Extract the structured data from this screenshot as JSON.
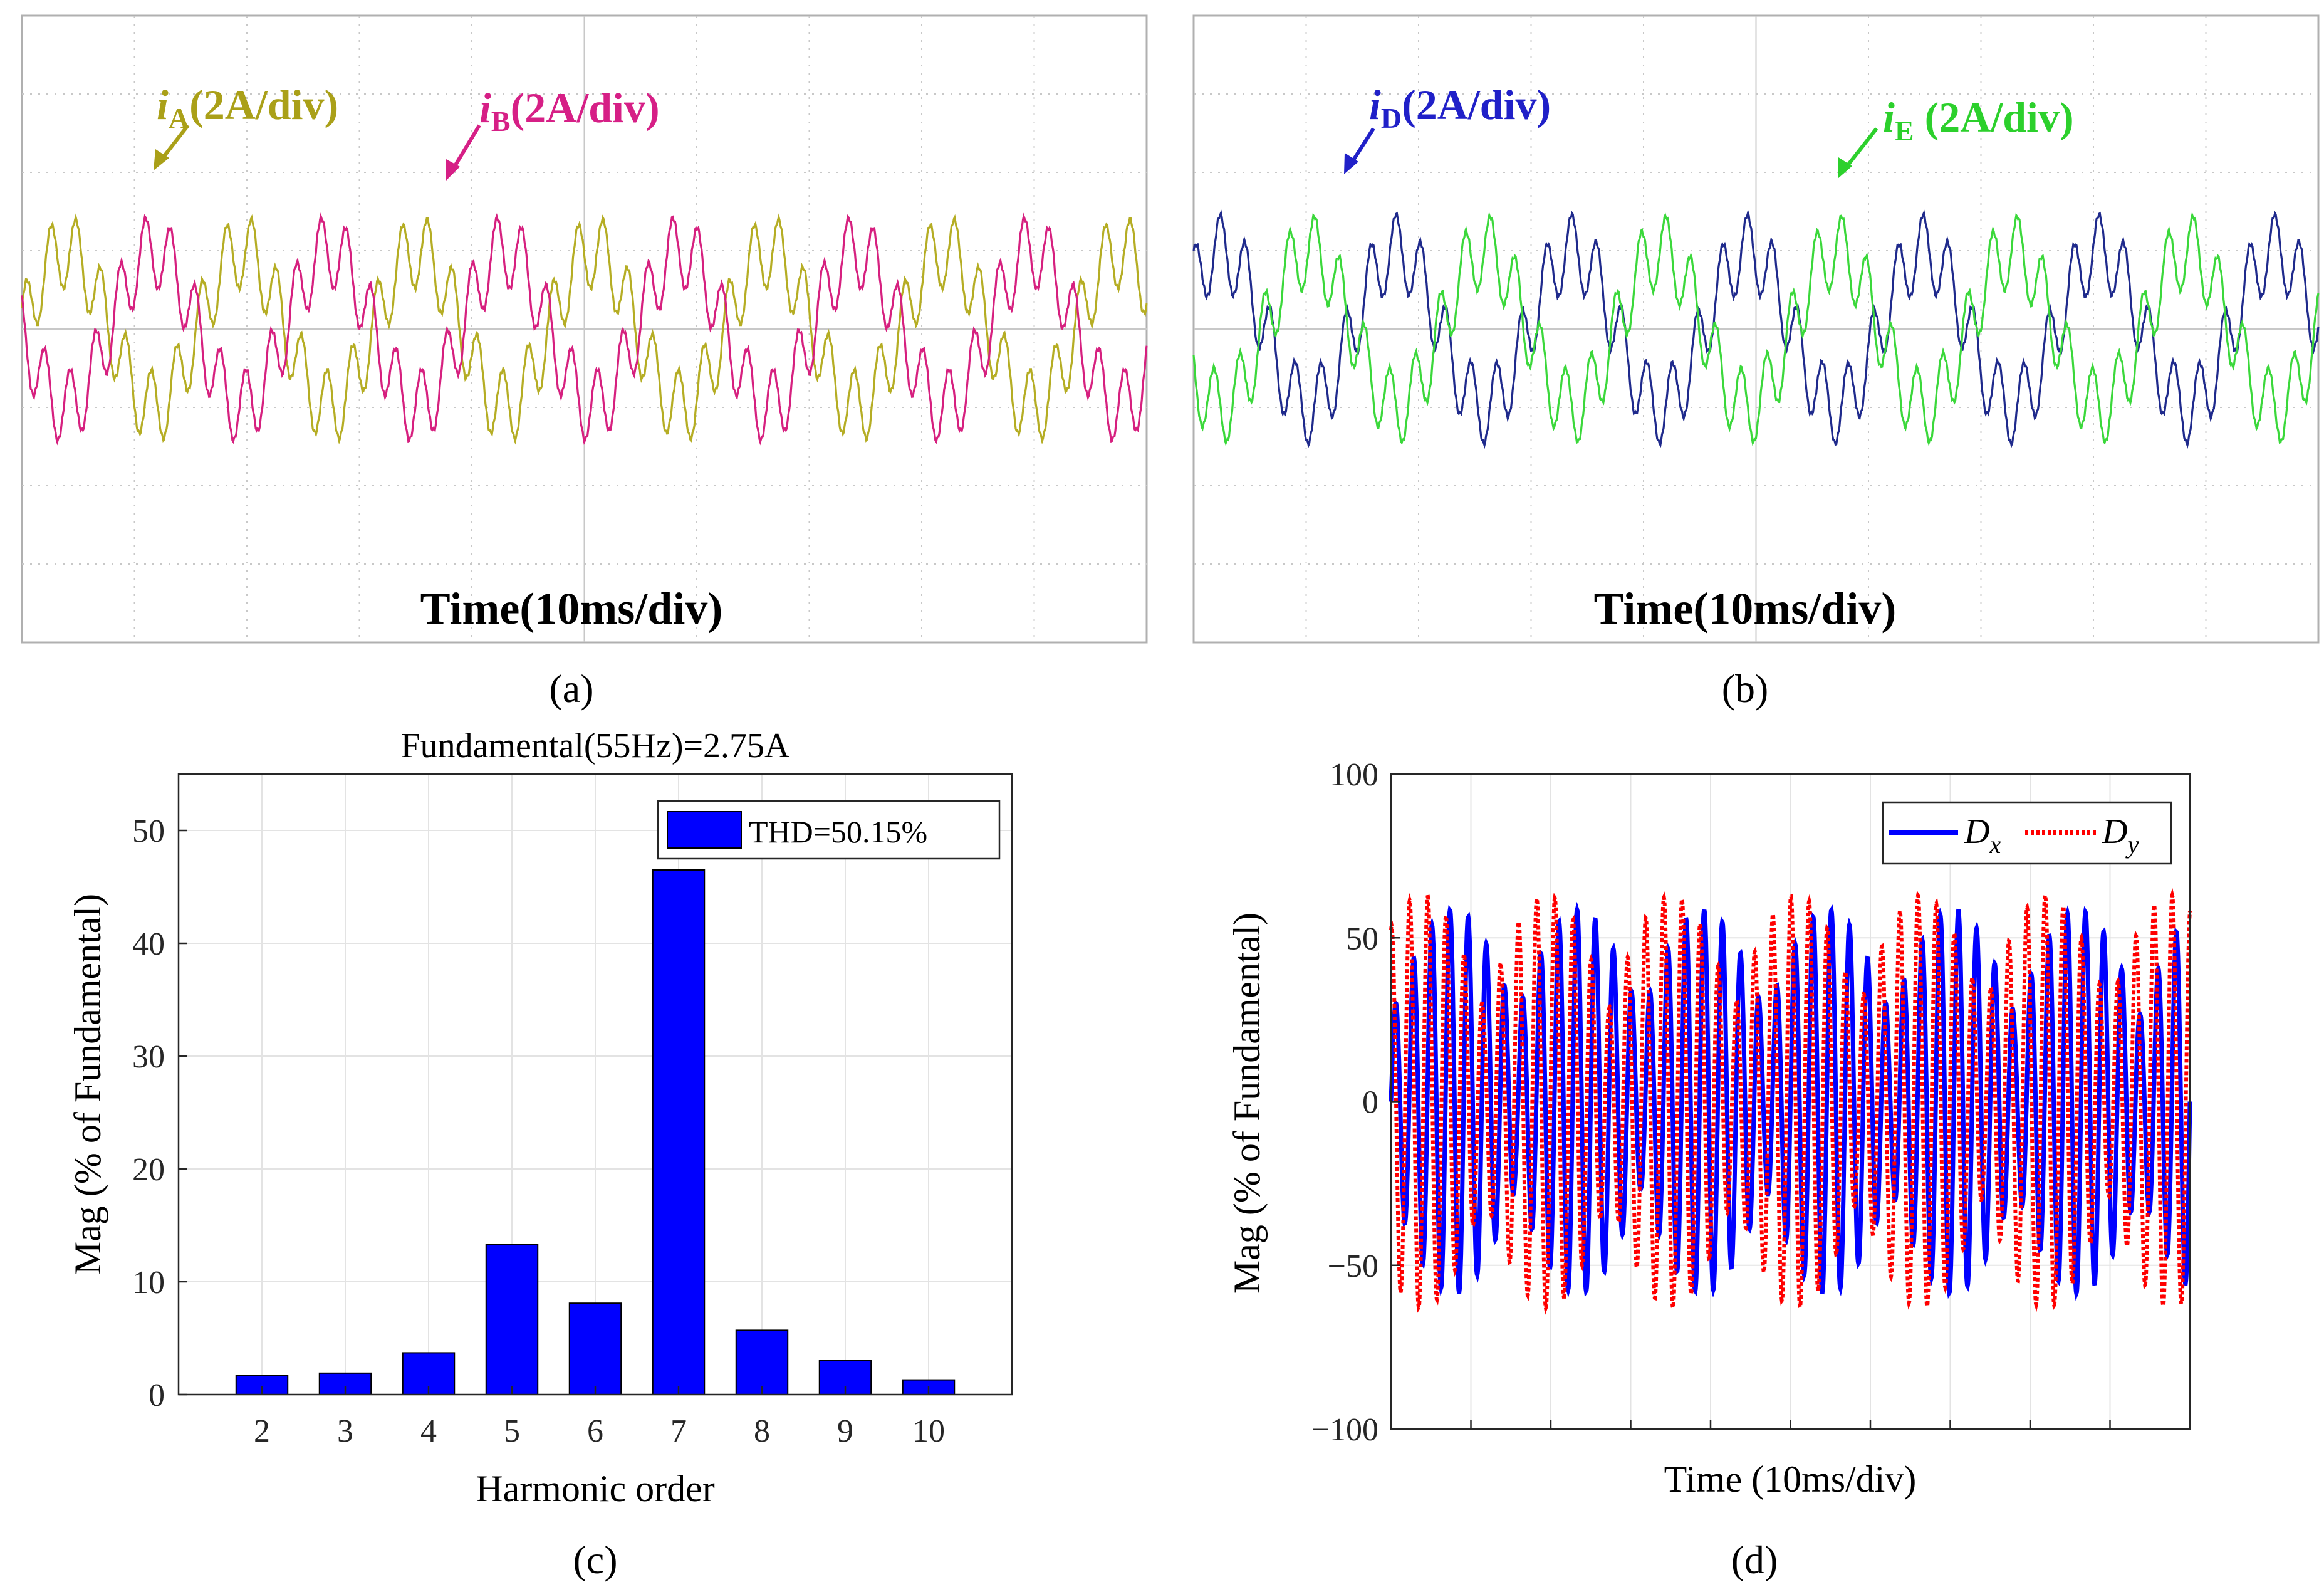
{
  "colors": {
    "scope_bg": "#ffffff",
    "scope_grid": "#c8c8c8",
    "iA": "#b5ad24",
    "iB": "#d6207f",
    "iD": "#1f2a8c",
    "iE": "#3bd83b",
    "label_iA": "#aaa018",
    "label_iB": "#d61f86",
    "label_iD": "#2020c8",
    "label_iE": "#2cd02c",
    "bar": "#0000ff",
    "dx": "#0000ff",
    "dy": "#ff0000"
  },
  "chart_data": [
    {
      "id": "a",
      "type": "line",
      "panel_label": "(a)",
      "xlabel": "Time(10ms/div)",
      "ylabel": "",
      "x_divisions": 10,
      "y_divisions": 8,
      "x_unit_per_div": "10ms",
      "series": [
        {
          "name": "iA",
          "label_main": "i",
          "label_sub": "A",
          "label_rest": "(2A/div)",
          "amp1": 1.0,
          "phase1": 0.0,
          "amp7": 0.47,
          "phase7": 0.6
        },
        {
          "name": "iB",
          "label_main": "i",
          "label_sub": "B",
          "label_rest": "(2A/div)",
          "amp1": 1.0,
          "phase1": 3.14,
          "amp7": 0.47,
          "phase7": 2.1
        }
      ]
    },
    {
      "id": "b",
      "type": "line",
      "panel_label": "(b)",
      "xlabel": "Time(10ms/div)",
      "ylabel": "",
      "x_divisions": 10,
      "y_divisions": 8,
      "x_unit_per_div": "10ms",
      "series": [
        {
          "name": "iD",
          "label_main": "i",
          "label_sub": "D",
          "label_rest": "(2A/div)",
          "amp1": 1.0,
          "phase1": 0.6,
          "amp7": 0.47,
          "phase7": 1.2
        },
        {
          "name": "iE",
          "label_main": "i",
          "label_sub": "E",
          "label_rest": " (2A/div)",
          "amp1": 1.0,
          "phase1": 3.74,
          "amp7": 0.47,
          "phase7": 2.7
        }
      ]
    },
    {
      "id": "c",
      "type": "bar",
      "panel_label": "(c)",
      "title": "Fundamental(55Hz)=2.75A",
      "xlabel": "Harmonic order",
      "ylabel": "Mag (% of Fundamental)",
      "categories": [
        "2",
        "3",
        "4",
        "5",
        "6",
        "7",
        "8",
        "9",
        "10"
      ],
      "values": [
        1.7,
        1.9,
        3.7,
        13.3,
        8.1,
        46.5,
        5.7,
        3.0,
        1.3
      ],
      "ylim": [
        0,
        55
      ],
      "yticks": [
        "0",
        "10",
        "20",
        "30",
        "40",
        "50"
      ],
      "legend": "THD=50.15%",
      "grid": true
    },
    {
      "id": "d",
      "type": "line",
      "panel_label": "(d)",
      "xlabel": "Time (10ms/div)",
      "ylabel": "Mag (% of Fundamental)",
      "ylim": [
        -100,
        100
      ],
      "yticks": [
        "−100",
        "−50",
        "0",
        "50",
        "100"
      ],
      "x_divisions": 10,
      "grid": true,
      "series": [
        {
          "name": "Dx",
          "label_main": "D",
          "label_sub": "x",
          "amplitude_range": [
            -57,
            60
          ]
        },
        {
          "name": "Dy",
          "label_main": "D",
          "label_sub": "y",
          "amplitude_range": [
            -63,
            63
          ]
        }
      ],
      "legend_position": "top-right"
    }
  ]
}
